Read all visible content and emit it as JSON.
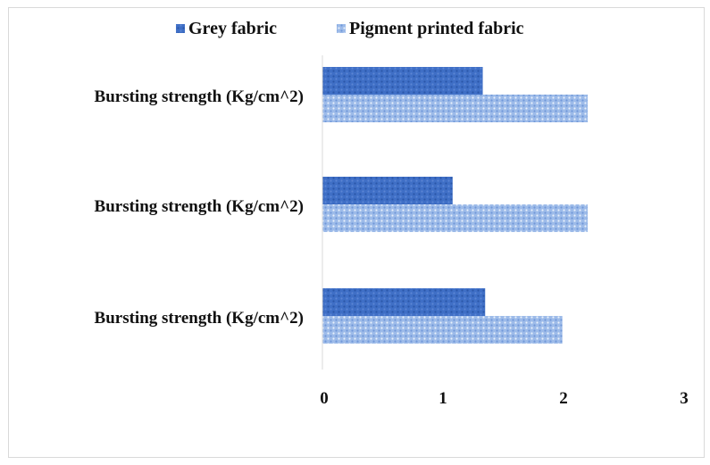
{
  "chart_data": {
    "type": "bar",
    "orientation": "horizontal",
    "categories": [
      "Bursting strength (Kg/cm^2)",
      "Bursting strength (Kg/cm^2)",
      "Bursting strength (Kg/cm^2)"
    ],
    "series": [
      {
        "name": "Grey fabric",
        "values": [
          1.33,
          1.08,
          1.35
        ],
        "color": "#3f6fc6",
        "pattern": "dense-dots"
      },
      {
        "name": "Pigment printed fabric",
        "values": [
          2.2,
          2.2,
          1.99
        ],
        "color": "#8eb1e6",
        "pattern": "light-dots"
      }
    ],
    "xlim": [
      0,
      3
    ],
    "xticks": [
      "0",
      "1",
      "2",
      "3"
    ],
    "grid": false,
    "legend_position": "top"
  }
}
